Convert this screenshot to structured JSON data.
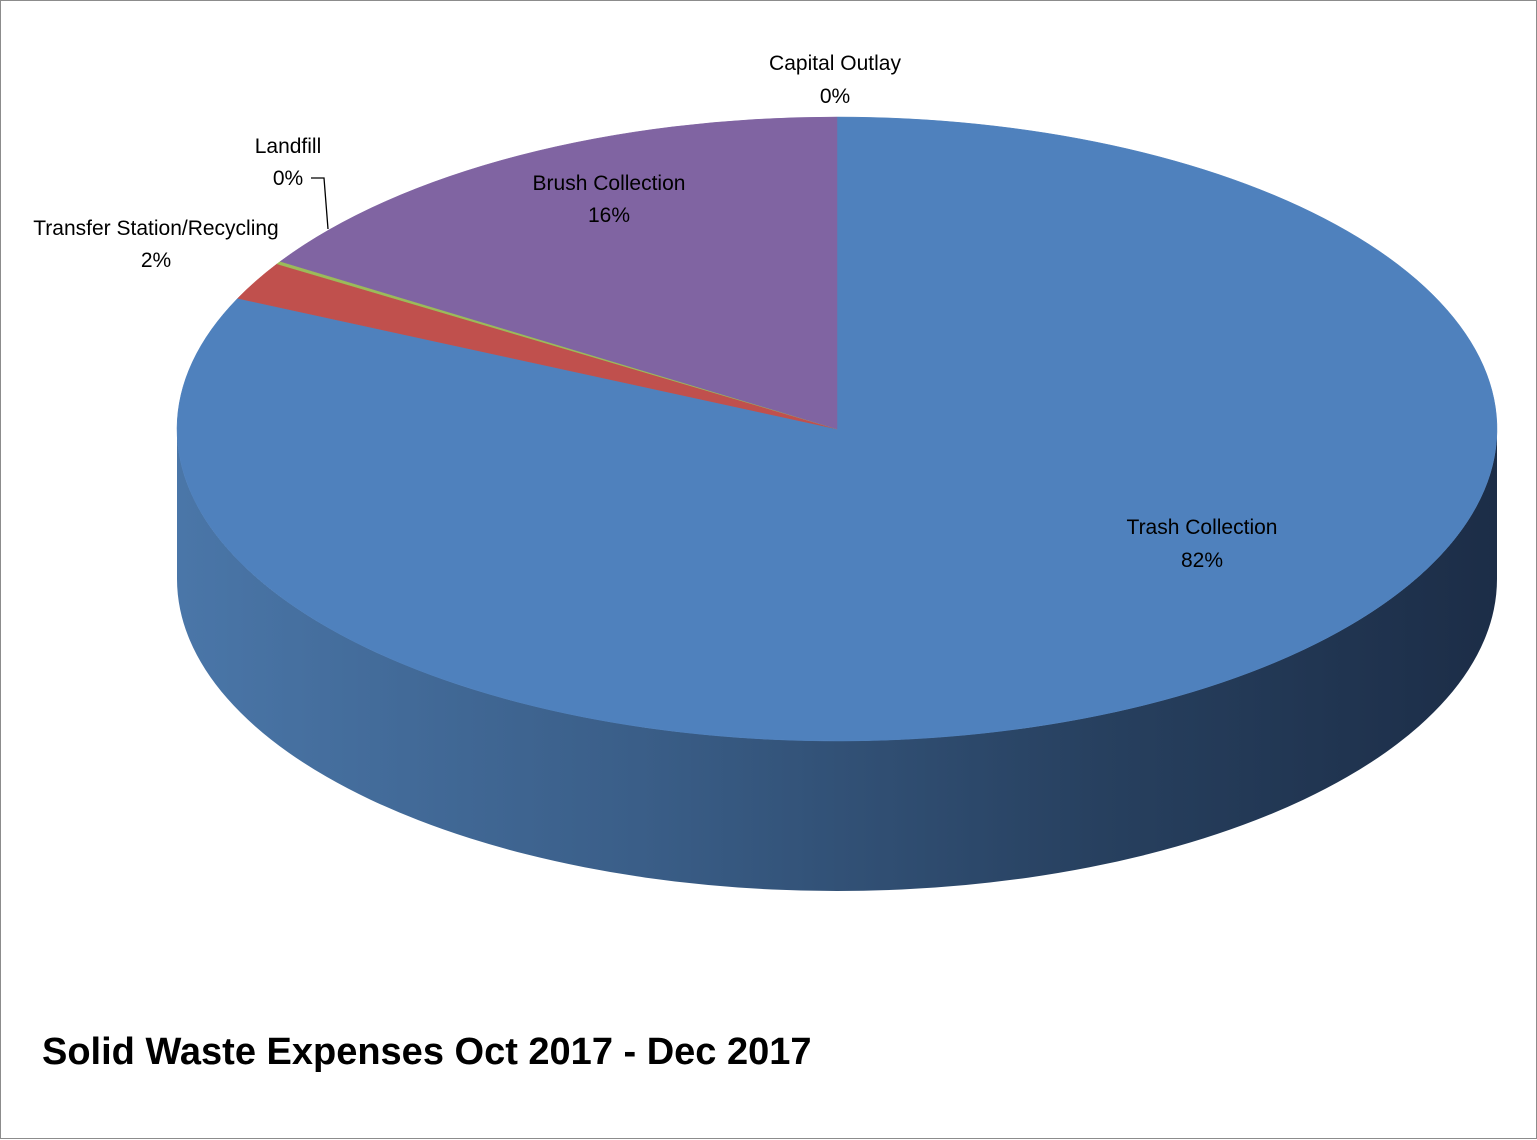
{
  "chart_data": {
    "type": "pie",
    "style": "3d",
    "title": "Solid Waste Expenses Oct 2017 - Dec 2017",
    "slices": [
      {
        "name": "Trash Collection",
        "percent_label": "82%",
        "value": 82,
        "color": "#4F81BD"
      },
      {
        "name": "Transfer Station/Recycling",
        "percent_label": "2%",
        "value": 2,
        "color": "#C0504D"
      },
      {
        "name": "Landfill",
        "percent_label": "0%",
        "value": 0.15,
        "color": "#9BBB59"
      },
      {
        "name": "Brush Collection",
        "percent_label": "16%",
        "value": 16,
        "color": "#8064A2"
      },
      {
        "name": "Capital Outlay",
        "percent_label": "0%",
        "value": 0,
        "color": "#4BACC6"
      }
    ]
  }
}
